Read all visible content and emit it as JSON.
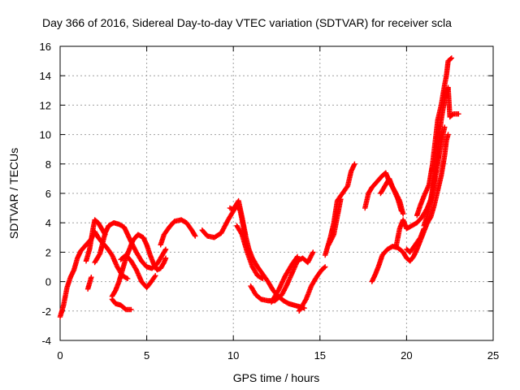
{
  "chart_data": {
    "type": "scatter",
    "title": "Day 366 of 2016, Sidereal Day-to-day VTEC variation (SDTVAR) for receiver scla",
    "xlabel": "GPS time / hours",
    "ylabel": "SDTVAR / TECUs",
    "xlim": [
      0,
      25
    ],
    "ylim": [
      -4,
      16
    ],
    "x_ticks": [
      0,
      5,
      10,
      15,
      20,
      25
    ],
    "y_ticks": [
      -4,
      -2,
      0,
      2,
      4,
      6,
      8,
      10,
      12,
      14,
      16
    ],
    "grid": true,
    "marker": "plus",
    "color": "#ff0000",
    "tracks": [
      [
        [
          0.0,
          -2.4
        ],
        [
          0.2,
          -1.6
        ],
        [
          0.4,
          -0.4
        ],
        [
          0.6,
          0.3
        ],
        [
          0.8,
          0.8
        ],
        [
          1.0,
          1.6
        ],
        [
          1.2,
          2.1
        ],
        [
          1.5,
          2.5
        ],
        [
          1.8,
          2.9
        ],
        [
          2.0,
          3.4
        ],
        [
          2.2,
          3.0
        ],
        [
          2.4,
          2.7
        ],
        [
          2.7,
          2.3
        ],
        [
          3.0,
          1.8
        ],
        [
          3.3,
          1.0
        ],
        [
          3.6,
          0.4
        ],
        [
          3.9,
          0.2
        ]
      ],
      [
        [
          1.5,
          1.4
        ],
        [
          1.7,
          2.2
        ],
        [
          1.9,
          3.6
        ],
        [
          2.0,
          4.2
        ],
        [
          2.2,
          4.0
        ],
        [
          2.4,
          3.6
        ],
        [
          2.6,
          3.2
        ]
      ],
      [
        [
          1.6,
          -0.5
        ],
        [
          1.7,
          -0.1
        ],
        [
          1.8,
          0.3
        ]
      ],
      [
        [
          2.0,
          1.3
        ],
        [
          2.3,
          1.9
        ],
        [
          2.6,
          3.3
        ],
        [
          2.8,
          3.8
        ],
        [
          3.1,
          4.0
        ],
        [
          3.4,
          3.9
        ],
        [
          3.7,
          3.7
        ],
        [
          3.9,
          3.2
        ],
        [
          4.1,
          2.7
        ],
        [
          4.4,
          2.0
        ],
        [
          4.7,
          1.4
        ],
        [
          5.0,
          1.0
        ],
        [
          5.3,
          0.9
        ],
        [
          5.6,
          1.2
        ],
        [
          5.9,
          1.8
        ],
        [
          6.1,
          2.2
        ]
      ],
      [
        [
          3.0,
          -1.0
        ],
        [
          3.2,
          -0.6
        ],
        [
          3.4,
          0.0
        ],
        [
          3.6,
          0.8
        ],
        [
          3.8,
          1.6
        ],
        [
          4.0,
          2.2
        ],
        [
          4.2,
          2.8
        ],
        [
          4.5,
          3.2
        ],
        [
          4.8,
          3.0
        ],
        [
          5.0,
          2.5
        ],
        [
          5.2,
          1.8
        ],
        [
          5.4,
          1.2
        ],
        [
          5.6,
          0.8
        ],
        [
          5.8,
          0.9
        ],
        [
          6.0,
          1.3
        ],
        [
          6.1,
          1.6
        ]
      ],
      [
        [
          3.0,
          -1.2
        ],
        [
          3.2,
          -1.5
        ],
        [
          3.5,
          -1.6
        ],
        [
          3.8,
          -1.9
        ],
        [
          4.1,
          -1.9
        ]
      ],
      [
        [
          3.5,
          1.5
        ],
        [
          3.8,
          1.8
        ],
        [
          4.1,
          1.4
        ],
        [
          4.4,
          0.8
        ],
        [
          4.7,
          0.0
        ],
        [
          5.0,
          -0.4
        ],
        [
          5.2,
          -0.1
        ],
        [
          5.5,
          0.4
        ]
      ],
      [
        [
          5.8,
          2.5
        ],
        [
          6.0,
          3.2
        ],
        [
          6.3,
          3.7
        ],
        [
          6.6,
          4.1
        ],
        [
          7.0,
          4.2
        ],
        [
          7.3,
          4.0
        ],
        [
          7.6,
          3.5
        ],
        [
          7.8,
          3.1
        ]
      ],
      [
        [
          8.2,
          3.5
        ],
        [
          8.5,
          3.1
        ],
        [
          8.9,
          3.0
        ],
        [
          9.3,
          3.3
        ],
        [
          9.7,
          4.2
        ],
        [
          10.0,
          4.8
        ],
        [
          10.2,
          5.2
        ],
        [
          10.4,
          4.8
        ],
        [
          10.6,
          3.6
        ],
        [
          10.9,
          2.2
        ],
        [
          11.1,
          1.6
        ],
        [
          11.4,
          1.0
        ],
        [
          11.7,
          0.5
        ],
        [
          12.0,
          0.0
        ],
        [
          12.3,
          -0.6
        ],
        [
          12.6,
          -1.0
        ],
        [
          12.9,
          -1.3
        ],
        [
          13.2,
          -1.5
        ],
        [
          13.5,
          -1.6
        ],
        [
          13.8,
          -1.7
        ],
        [
          14.1,
          -1.8
        ]
      ],
      [
        [
          9.8,
          5.0
        ],
        [
          10.0,
          4.9
        ],
        [
          10.3,
          5.5
        ],
        [
          10.5,
          4.4
        ],
        [
          10.7,
          3.2
        ]
      ],
      [
        [
          10.2,
          3.8
        ],
        [
          10.5,
          3.2
        ],
        [
          10.8,
          2.0
        ],
        [
          11.1,
          1.0
        ],
        [
          11.4,
          0.4
        ],
        [
          11.7,
          0.2
        ]
      ],
      [
        [
          11.0,
          -0.3
        ],
        [
          11.3,
          -0.9
        ],
        [
          11.6,
          -1.2
        ],
        [
          12.0,
          -1.3
        ],
        [
          12.4,
          -1.3
        ],
        [
          12.8,
          -0.9
        ],
        [
          13.1,
          -0.2
        ],
        [
          13.4,
          0.6
        ],
        [
          13.7,
          1.4
        ],
        [
          14.0,
          1.6
        ],
        [
          14.3,
          1.3
        ],
        [
          14.6,
          2.0
        ]
      ],
      [
        [
          12.2,
          -1.4
        ],
        [
          12.6,
          -0.6
        ],
        [
          13.0,
          0.4
        ],
        [
          13.4,
          1.2
        ],
        [
          13.7,
          1.7
        ]
      ],
      [
        [
          13.8,
          -2.0
        ],
        [
          14.2,
          -1.2
        ],
        [
          14.5,
          -0.3
        ],
        [
          14.8,
          0.3
        ],
        [
          15.1,
          0.8
        ],
        [
          15.3,
          1.0
        ]
      ],
      [
        [
          15.3,
          1.8
        ],
        [
          15.6,
          3.0
        ],
        [
          15.8,
          4.0
        ],
        [
          16.0,
          5.5
        ],
        [
          16.3,
          6.0
        ],
        [
          16.6,
          6.5
        ],
        [
          16.8,
          7.5
        ],
        [
          17.0,
          8.0
        ]
      ],
      [
        [
          15.5,
          2.5
        ],
        [
          15.8,
          3.2
        ],
        [
          16.0,
          4.4
        ],
        [
          16.2,
          5.6
        ]
      ],
      [
        [
          17.6,
          5.0
        ],
        [
          17.8,
          6.0
        ],
        [
          18.0,
          6.4
        ],
        [
          18.3,
          6.8
        ],
        [
          18.6,
          7.2
        ],
        [
          18.8,
          7.4
        ],
        [
          19.0,
          6.8
        ],
        [
          19.3,
          6.2
        ],
        [
          19.6,
          5.5
        ],
        [
          19.8,
          4.6
        ]
      ],
      [
        [
          18.0,
          0.0
        ],
        [
          18.2,
          0.5
        ],
        [
          18.4,
          1.1
        ],
        [
          18.6,
          1.8
        ],
        [
          18.9,
          2.2
        ],
        [
          19.2,
          2.4
        ],
        [
          19.5,
          2.3
        ],
        [
          19.8,
          2.0
        ],
        [
          20.0,
          1.6
        ],
        [
          20.2,
          1.4
        ],
        [
          20.4,
          1.7
        ],
        [
          20.6,
          2.2
        ],
        [
          20.8,
          2.8
        ],
        [
          21.0,
          3.4
        ],
        [
          21.2,
          4.0
        ],
        [
          21.4,
          4.4
        ],
        [
          21.6,
          5.2
        ],
        [
          21.8,
          6.2
        ],
        [
          22.0,
          7.2
        ],
        [
          22.2,
          8.6
        ],
        [
          22.3,
          9.6
        ],
        [
          22.4,
          10.0
        ]
      ],
      [
        [
          18.5,
          6.0
        ],
        [
          18.8,
          6.6
        ],
        [
          19.0,
          7.0
        ],
        [
          19.2,
          6.4
        ],
        [
          19.5,
          5.6
        ],
        [
          19.7,
          4.8
        ]
      ],
      [
        [
          19.4,
          2.4
        ],
        [
          19.6,
          3.6
        ],
        [
          19.8,
          4.2
        ],
        [
          20.0,
          3.6
        ],
        [
          20.3,
          3.8
        ],
        [
          20.6,
          4.0
        ],
        [
          20.9,
          4.4
        ],
        [
          21.2,
          5.0
        ],
        [
          21.4,
          5.6
        ],
        [
          21.6,
          7.0
        ],
        [
          21.8,
          9.0
        ],
        [
          22.0,
          11.0
        ],
        [
          22.2,
          12.4
        ],
        [
          22.4,
          13.2
        ],
        [
          22.5,
          11.2
        ],
        [
          22.7,
          11.4
        ],
        [
          23.0,
          11.4
        ]
      ],
      [
        [
          20.0,
          2.2
        ],
        [
          20.2,
          2.0
        ],
        [
          20.5,
          2.5
        ],
        [
          20.8,
          3.0
        ],
        [
          21.0,
          3.6
        ]
      ],
      [
        [
          20.6,
          4.5
        ],
        [
          20.8,
          5.2
        ],
        [
          21.0,
          5.8
        ],
        [
          21.3,
          6.6
        ],
        [
          21.5,
          8.0
        ],
        [
          21.7,
          10.0
        ],
        [
          21.8,
          11.0
        ],
        [
          22.0,
          12.0
        ],
        [
          22.2,
          13.4
        ],
        [
          22.3,
          14.0
        ],
        [
          22.4,
          15.0
        ],
        [
          22.6,
          15.2
        ]
      ],
      [
        [
          21.0,
          3.8
        ],
        [
          21.2,
          4.5
        ],
        [
          21.5,
          6.0
        ],
        [
          21.8,
          8.0
        ],
        [
          22.0,
          9.5
        ],
        [
          22.2,
          10.5
        ]
      ]
    ]
  }
}
